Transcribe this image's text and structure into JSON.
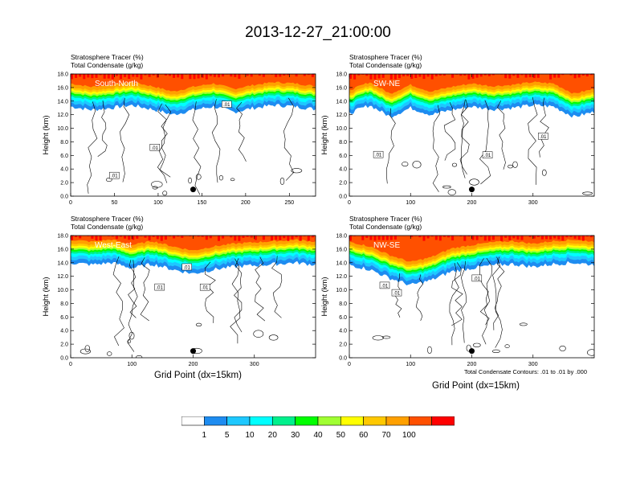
{
  "title": "2013-12-27_21:00:00",
  "field_labels": [
    "Stratosphere Tracer   (%)",
    "Total Condensate   (g/kg)"
  ],
  "y_axis_label": "Height (km)",
  "x_axis_label": "Grid Point (dx=15km)",
  "contour_note": "Total Condensate Contours: .01 to .01 by .000",
  "contour_label": ".01",
  "colors": {
    "levels": [
      "#ffffff",
      "#1e8cf0",
      "#1ec8ff",
      "#00ffff",
      "#00f08c",
      "#00ff00",
      "#a0ff32",
      "#ffff00",
      "#ffc800",
      "#ffa000",
      "#ff5000",
      "#ff0000"
    ],
    "background": "#ffffff",
    "contour": "#000000"
  },
  "colorbar": {
    "labels": [
      "1",
      "5",
      "10",
      "20",
      "30",
      "40",
      "50",
      "60",
      "70",
      "100"
    ]
  },
  "chart_data": [
    {
      "type": "heatmap",
      "panel": "top-left",
      "label": "South-North",
      "xlim": [
        0,
        280
      ],
      "ylim": [
        0,
        18
      ],
      "xticks": [
        0,
        50,
        100,
        150,
        200,
        250
      ],
      "yticks": [
        0,
        2,
        4,
        6,
        8,
        10,
        12,
        14,
        16,
        18
      ],
      "xticklabels": [
        "0",
        "50",
        "100",
        "150",
        "200",
        "250"
      ],
      "yticklabels": [
        "0.0",
        "2.0",
        "4.0",
        "6.0",
        "8.0",
        "10.0",
        "12.0",
        "14.0",
        "16.0",
        "18.0"
      ],
      "tropopause_km": [
        15.0,
        14.5,
        14.8,
        15.2,
        14.6,
        13.8,
        14.5,
        15.0,
        14.2,
        14.8,
        15.2,
        15.0,
        14.6
      ],
      "marker": [
        140,
        1.0
      ]
    },
    {
      "type": "heatmap",
      "panel": "top-right",
      "label": "SW-NE",
      "xlim": [
        0,
        400
      ],
      "ylim": [
        0,
        18
      ],
      "xticks": [
        0,
        100,
        200,
        300
      ],
      "yticks": [
        0,
        2,
        4,
        6,
        8,
        10,
        12,
        14,
        16,
        18
      ],
      "xticklabels": [
        "0",
        "100",
        "200",
        "300"
      ],
      "yticklabels": [
        "0.0",
        "2.0",
        "4.0",
        "6.0",
        "8.0",
        "10.0",
        "12.0",
        "14.0",
        "16.0",
        "18.0"
      ],
      "tropopause_km": [
        14.0,
        15.2,
        13.5,
        14.8,
        13.8,
        14.5,
        15.0,
        14.6,
        14.8,
        15.2,
        15.0,
        13.5,
        14.2
      ],
      "marker": [
        200,
        1.0
      ]
    },
    {
      "type": "heatmap",
      "panel": "bottom-left",
      "label": "West-East",
      "xlim": [
        0,
        400
      ],
      "ylim": [
        0,
        18
      ],
      "xticks": [
        0,
        100,
        200,
        300
      ],
      "yticks": [
        0,
        2,
        4,
        6,
        8,
        10,
        12,
        14,
        16,
        18
      ],
      "xticklabels": [
        "0",
        "100",
        "200",
        "300"
      ],
      "yticklabels": [
        "0.0",
        "2.0",
        "4.0",
        "6.0",
        "8.0",
        "10.0",
        "12.0",
        "14.0",
        "16.0",
        "18.0"
      ],
      "tropopause_km": [
        15.8,
        15.5,
        15.8,
        15.0,
        15.6,
        14.8,
        14.2,
        14.8,
        15.2,
        15.4,
        15.6,
        15.8,
        15.5
      ],
      "marker": [
        200,
        1.0
      ]
    },
    {
      "type": "heatmap",
      "panel": "bottom-right",
      "label": "NW-SE",
      "xlim": [
        0,
        400
      ],
      "ylim": [
        0,
        18
      ],
      "xticks": [
        0,
        100,
        200,
        300
      ],
      "yticks": [
        0,
        2,
        4,
        6,
        8,
        10,
        12,
        14,
        16,
        18
      ],
      "xticklabels": [
        "0",
        "100",
        "200",
        "300"
      ],
      "yticklabels": [
        "0.0",
        "2.0",
        "4.0",
        "6.0",
        "8.0",
        "10.0",
        "12.0",
        "14.0",
        "16.0",
        "18.0"
      ],
      "tropopause_km": [
        15.5,
        14.8,
        13.5,
        12.5,
        13.2,
        14.5,
        15.0,
        15.4,
        15.6,
        15.2,
        15.6,
        15.8,
        15.5
      ],
      "marker": [
        200,
        1.0
      ]
    }
  ]
}
